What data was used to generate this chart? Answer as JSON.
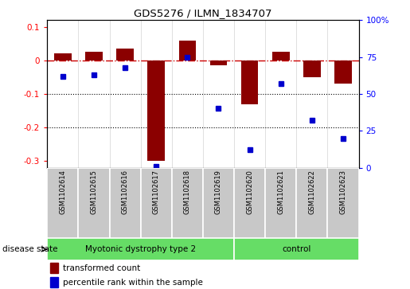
{
  "title": "GDS5276 / ILMN_1834707",
  "samples": [
    "GSM1102614",
    "GSM1102615",
    "GSM1102616",
    "GSM1102617",
    "GSM1102618",
    "GSM1102619",
    "GSM1102620",
    "GSM1102621",
    "GSM1102622",
    "GSM1102623"
  ],
  "transformed_count": [
    0.02,
    0.025,
    0.035,
    -0.3,
    0.06,
    -0.015,
    -0.13,
    0.025,
    -0.05,
    -0.07
  ],
  "percentile_rank": [
    0.62,
    0.63,
    0.68,
    0.01,
    0.75,
    0.4,
    0.12,
    0.57,
    0.32,
    0.2
  ],
  "ylim_left": [
    -0.32,
    0.12
  ],
  "ylim_right": [
    0.0,
    1.0
  ],
  "yticks_left": [
    -0.3,
    -0.2,
    -0.1,
    0.0,
    0.1
  ],
  "yticks_right": [
    0.0,
    0.25,
    0.5,
    0.75,
    1.0
  ],
  "ytick_labels_right": [
    "0",
    "25",
    "50",
    "75",
    "100%"
  ],
  "ytick_labels_left": [
    "-0.3",
    "-0.2",
    "-0.1",
    "0",
    "0.1"
  ],
  "bar_color": "#8B0000",
  "dot_color": "#0000CD",
  "hline_color": "#CC0000",
  "dotted_line_color": "#000000",
  "background_color": "#ffffff",
  "sample_box_color": "#C8C8C8",
  "n_disease": 6,
  "n_control": 4,
  "disease_label": "Myotonic dystrophy type 2",
  "control_label": "control",
  "disease_state_label": "disease state",
  "green_color": "#66DD66",
  "legend_red_label": "transformed count",
  "legend_blue_label": "percentile rank within the sample"
}
